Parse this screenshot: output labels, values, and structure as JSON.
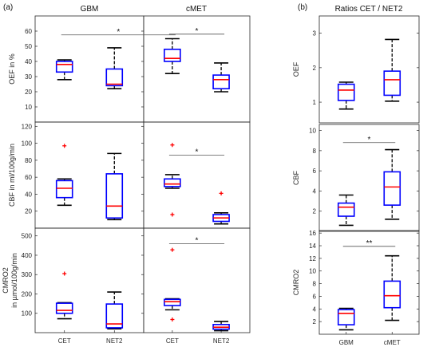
{
  "panel_labels": {
    "a": "(a)",
    "b": "(b)"
  },
  "group_titles": {
    "gbm": "GBM",
    "cmet": "cMET",
    "ratios": "Ratios CET / NET2"
  },
  "colors": {
    "box": "#0000ff",
    "median": "#ff0000",
    "whisker": "#000000",
    "outlier": "#ff0000",
    "sigline": "#555555"
  },
  "chart_data": [
    {
      "id": "oef-gbm",
      "type": "box",
      "ylabel": "OEF in %",
      "ylim": [
        0,
        70
      ],
      "yticks": [
        10,
        20,
        30,
        40,
        50,
        60
      ],
      "categories": [],
      "boxes": [
        {
          "q1": 33,
          "median": 38,
          "q3": 40,
          "whislo": 28,
          "whishi": 41,
          "fliers": []
        },
        {
          "q1": 24,
          "median": 25,
          "q3": 35,
          "whislo": 22,
          "whishi": 49,
          "fliers": []
        }
      ],
      "sig": []
    },
    {
      "id": "oef-cmet",
      "type": "box",
      "ylim": [
        0,
        70
      ],
      "yticks": [],
      "categories": [],
      "boxes": [
        {
          "q1": 40,
          "median": 42,
          "q3": 48,
          "whislo": 32,
          "whishi": 55,
          "fliers": []
        },
        {
          "q1": 22,
          "median": 28,
          "q3": 31,
          "whislo": 20,
          "whishi": 39,
          "fliers": []
        }
      ],
      "sig": [
        {
          "from": 0,
          "to": 1,
          "y": 58,
          "label": "*"
        }
      ]
    },
    {
      "id": "cbf-gbm",
      "type": "box",
      "ylabel": "CBF in ml/100g/min",
      "ylim": [
        0,
        125
      ],
      "yticks": [
        20,
        40,
        60,
        80,
        100,
        120
      ],
      "categories": [],
      "boxes": [
        {
          "q1": 36,
          "median": 47,
          "q3": 56,
          "whislo": 27,
          "whishi": 58,
          "fliers": [
            97
          ]
        },
        {
          "q1": 12,
          "median": 26,
          "q3": 64,
          "whislo": 10,
          "whishi": 88,
          "fliers": []
        }
      ],
      "sig": []
    },
    {
      "id": "cbf-cmet",
      "type": "box",
      "ylim": [
        0,
        125
      ],
      "yticks": [],
      "categories": [],
      "boxes": [
        {
          "q1": 49,
          "median": 52,
          "q3": 58,
          "whislo": 47,
          "whishi": 63,
          "fliers": [
            98,
            16
          ]
        },
        {
          "q1": 8,
          "median": 12,
          "q3": 16,
          "whislo": 5,
          "whishi": 18,
          "fliers": [
            41
          ]
        }
      ],
      "sig": [
        {
          "from": 0,
          "to": 1,
          "y": 86,
          "label": "*"
        }
      ]
    },
    {
      "id": "cmro2-gbm",
      "type": "box",
      "ylabel": "CMRO2",
      "ylabel2": "in µmol/100g/min",
      "ylim": [
        0,
        540
      ],
      "yticks": [
        100,
        200,
        300,
        400,
        500
      ],
      "categories": [
        "CET",
        "NET2"
      ],
      "boxes": [
        {
          "q1": 100,
          "median": 115,
          "q3": 152,
          "whislo": 72,
          "whishi": 155,
          "fliers": [
            305
          ]
        },
        {
          "q1": 25,
          "median": 45,
          "q3": 148,
          "whislo": 20,
          "whishi": 210,
          "fliers": []
        }
      ],
      "sig": []
    },
    {
      "id": "cmro2-cmet",
      "type": "box",
      "ylim": [
        0,
        540
      ],
      "yticks": [],
      "categories": [
        "CET",
        "NET2"
      ],
      "boxes": [
        {
          "q1": 140,
          "median": 160,
          "q3": 172,
          "whislo": 118,
          "whishi": 175,
          "fliers": [
            428,
            68
          ]
        },
        {
          "q1": 18,
          "median": 28,
          "q3": 42,
          "whislo": 10,
          "whishi": 58,
          "fliers": []
        }
      ],
      "sig": [
        {
          "from": 0,
          "to": 1,
          "y": 460,
          "label": "*"
        }
      ]
    },
    {
      "id": "ratio-oef",
      "type": "box",
      "ylabel": "OEF",
      "ylim": [
        0.4,
        3.5
      ],
      "yticks": [
        1,
        2,
        3
      ],
      "categories": [],
      "boxes": [
        {
          "q1": 1.05,
          "median": 1.35,
          "q3": 1.52,
          "whislo": 0.8,
          "whishi": 1.58,
          "fliers": []
        },
        {
          "q1": 1.2,
          "median": 1.65,
          "q3": 1.9,
          "whislo": 1.03,
          "whishi": 2.82,
          "fliers": []
        }
      ],
      "sig": []
    },
    {
      "id": "ratio-cbf",
      "type": "box",
      "ylabel": "CBF",
      "ylim": [
        0,
        10.6
      ],
      "yticks": [
        2,
        4,
        6,
        8,
        10
      ],
      "categories": [],
      "boxes": [
        {
          "q1": 1.5,
          "median": 2.4,
          "q3": 2.8,
          "whislo": 0.6,
          "whishi": 3.6,
          "fliers": []
        },
        {
          "q1": 2.6,
          "median": 4.4,
          "q3": 5.9,
          "whislo": 1.2,
          "whishi": 8.1,
          "fliers": []
        }
      ],
      "sig": [
        {
          "from": 0,
          "to": 1,
          "y": 8.8,
          "label": "*"
        }
      ]
    },
    {
      "id": "ratio-cmro2",
      "type": "box",
      "ylabel": "CMRO2",
      "ylim": [
        0,
        16.4
      ],
      "yticks": [
        2,
        4,
        6,
        8,
        10,
        12,
        14,
        16
      ],
      "categories": [
        "GBM",
        "cMET"
      ],
      "boxes": [
        {
          "q1": 1.5,
          "median": 3.3,
          "q3": 3.9,
          "whislo": 0.7,
          "whishi": 4.1,
          "fliers": []
        },
        {
          "q1": 4.2,
          "median": 6.1,
          "q3": 8.4,
          "whislo": 2.2,
          "whishi": 12.4,
          "fliers": []
        }
      ],
      "sig": [
        {
          "from": 0,
          "to": 1,
          "y": 13.9,
          "label": "**"
        }
      ]
    }
  ]
}
